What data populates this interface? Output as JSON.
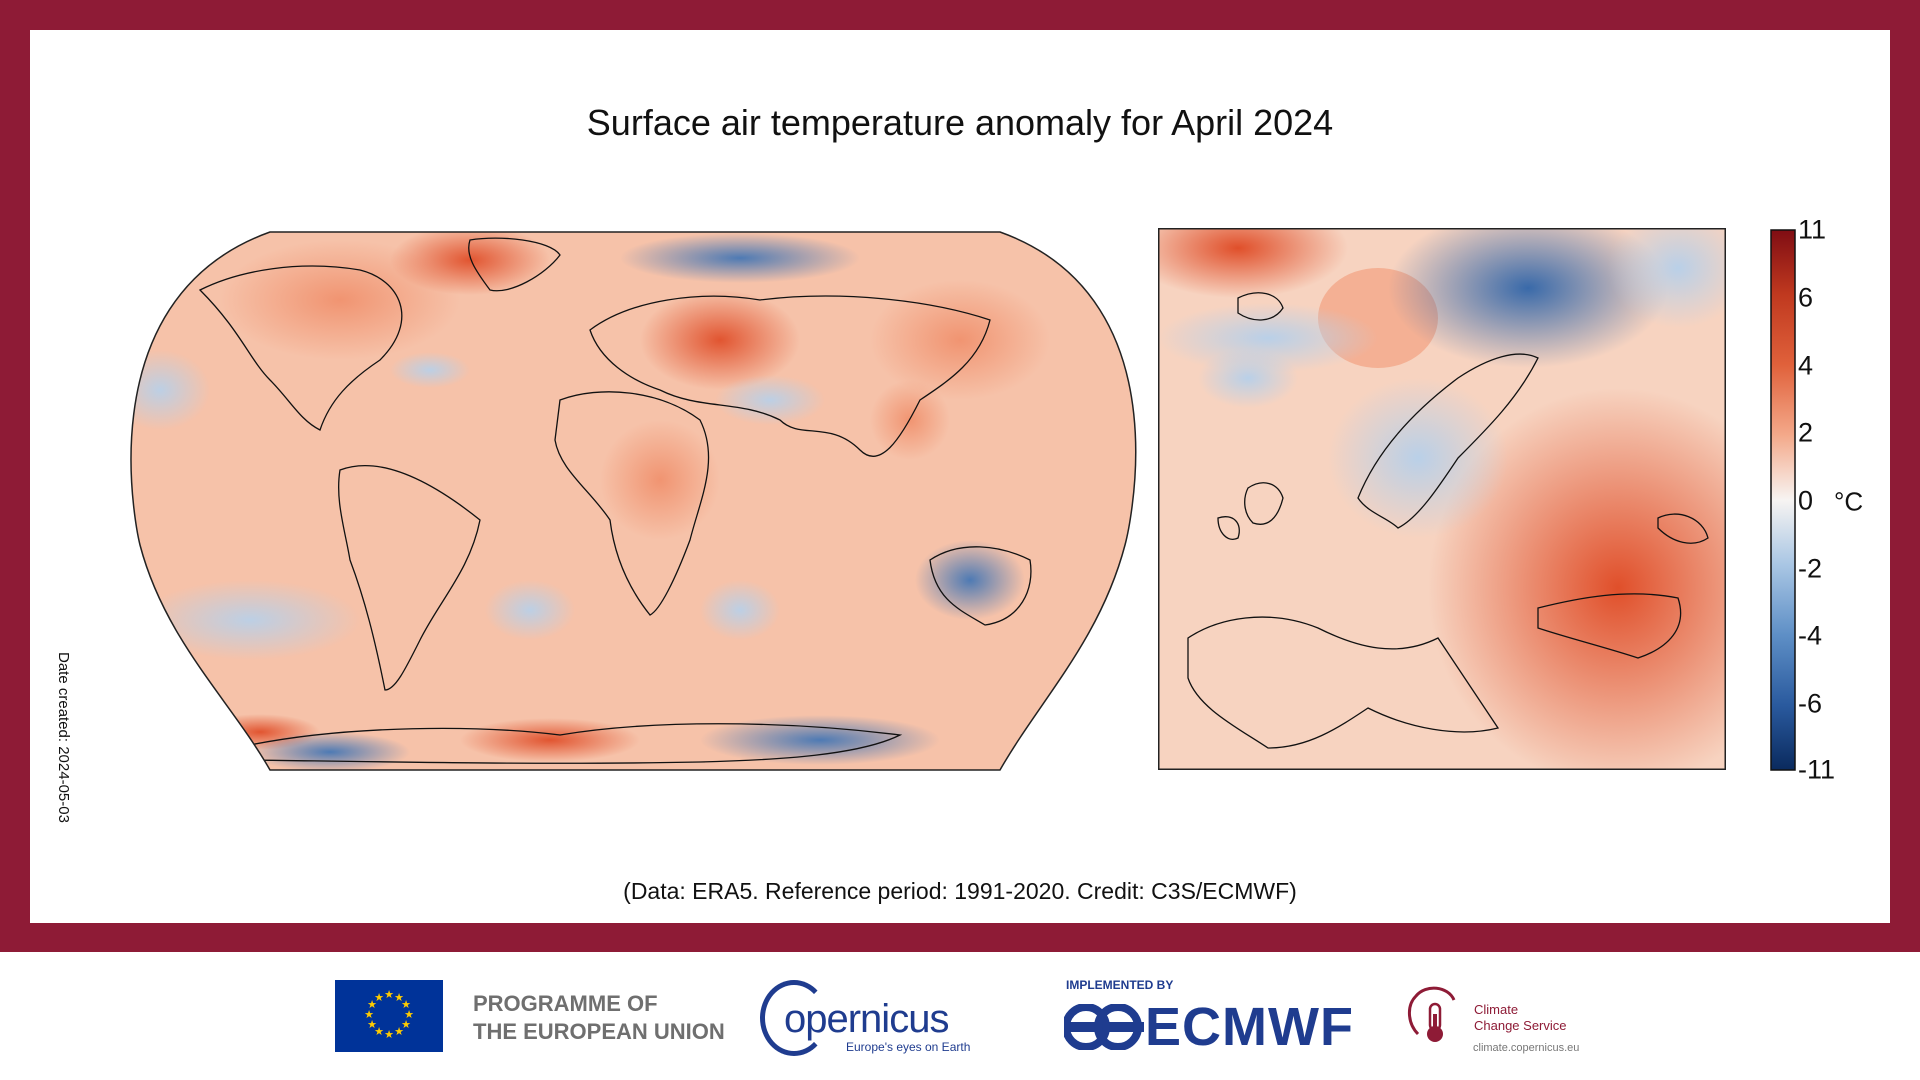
{
  "title": "Surface air temperature anomaly for April 2024",
  "date_created": "Date created: 2024-05-03",
  "footnote": "(Data: ERA5. Reference period: 1991-2020. Credit: C3S/ECMWF)",
  "colorbar": {
    "ticks": [
      "11",
      "6",
      "4",
      "2",
      "0",
      "-2",
      "-4",
      "-6",
      "-11"
    ],
    "unit": "°C",
    "colors": {
      "max": "#7f0d13",
      "warm_strong": "#e04f2a",
      "warm": "#f4a98a",
      "neutral": "#f7f4f2",
      "cool": "#a9c6e4",
      "cool_strong": "#3b72b5",
      "min": "#0a2a5e"
    }
  },
  "maps": [
    {
      "name": "Global map",
      "projection": "Robinson"
    },
    {
      "name": "Europe map",
      "projection": "regional"
    }
  ],
  "footer": {
    "eu_text_line1": "PROGRAMME OF",
    "eu_text_line2": "THE EUROPEAN UNION",
    "copernicus": "opernicus",
    "copernicus_initial": "C",
    "copernicus_tag": "Europe's eyes on Earth",
    "implemented_by": "IMPLEMENTED BY",
    "ecmwf": "ECMWF",
    "c3s_line1": "Climate",
    "c3s_line2": "Change Service",
    "c3s_url": "climate.copernicus.eu"
  }
}
